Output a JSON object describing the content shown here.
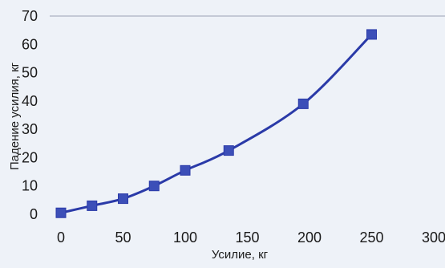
{
  "chart_data": {
    "type": "line",
    "title": "",
    "xlabel": "Усилие, кг",
    "ylabel": "Падение усилия, кг",
    "xlim": [
      0,
      300
    ],
    "ylim": [
      0,
      70
    ],
    "x_ticks": [
      "0",
      "50",
      "100",
      "150",
      "200",
      "250",
      "300"
    ],
    "y_ticks": [
      "0",
      "10",
      "20",
      "30",
      "40",
      "50",
      "60",
      "70"
    ],
    "grid": false,
    "legend": "none",
    "series": [
      {
        "color": "#2a3aa8",
        "marker_color": "#3c4fb8",
        "x": [
          0,
          25,
          50,
          75,
          100,
          135,
          195,
          250
        ],
        "y": [
          0.5,
          3,
          5.5,
          10,
          15.5,
          22.5,
          39,
          63.5
        ]
      }
    ]
  }
}
